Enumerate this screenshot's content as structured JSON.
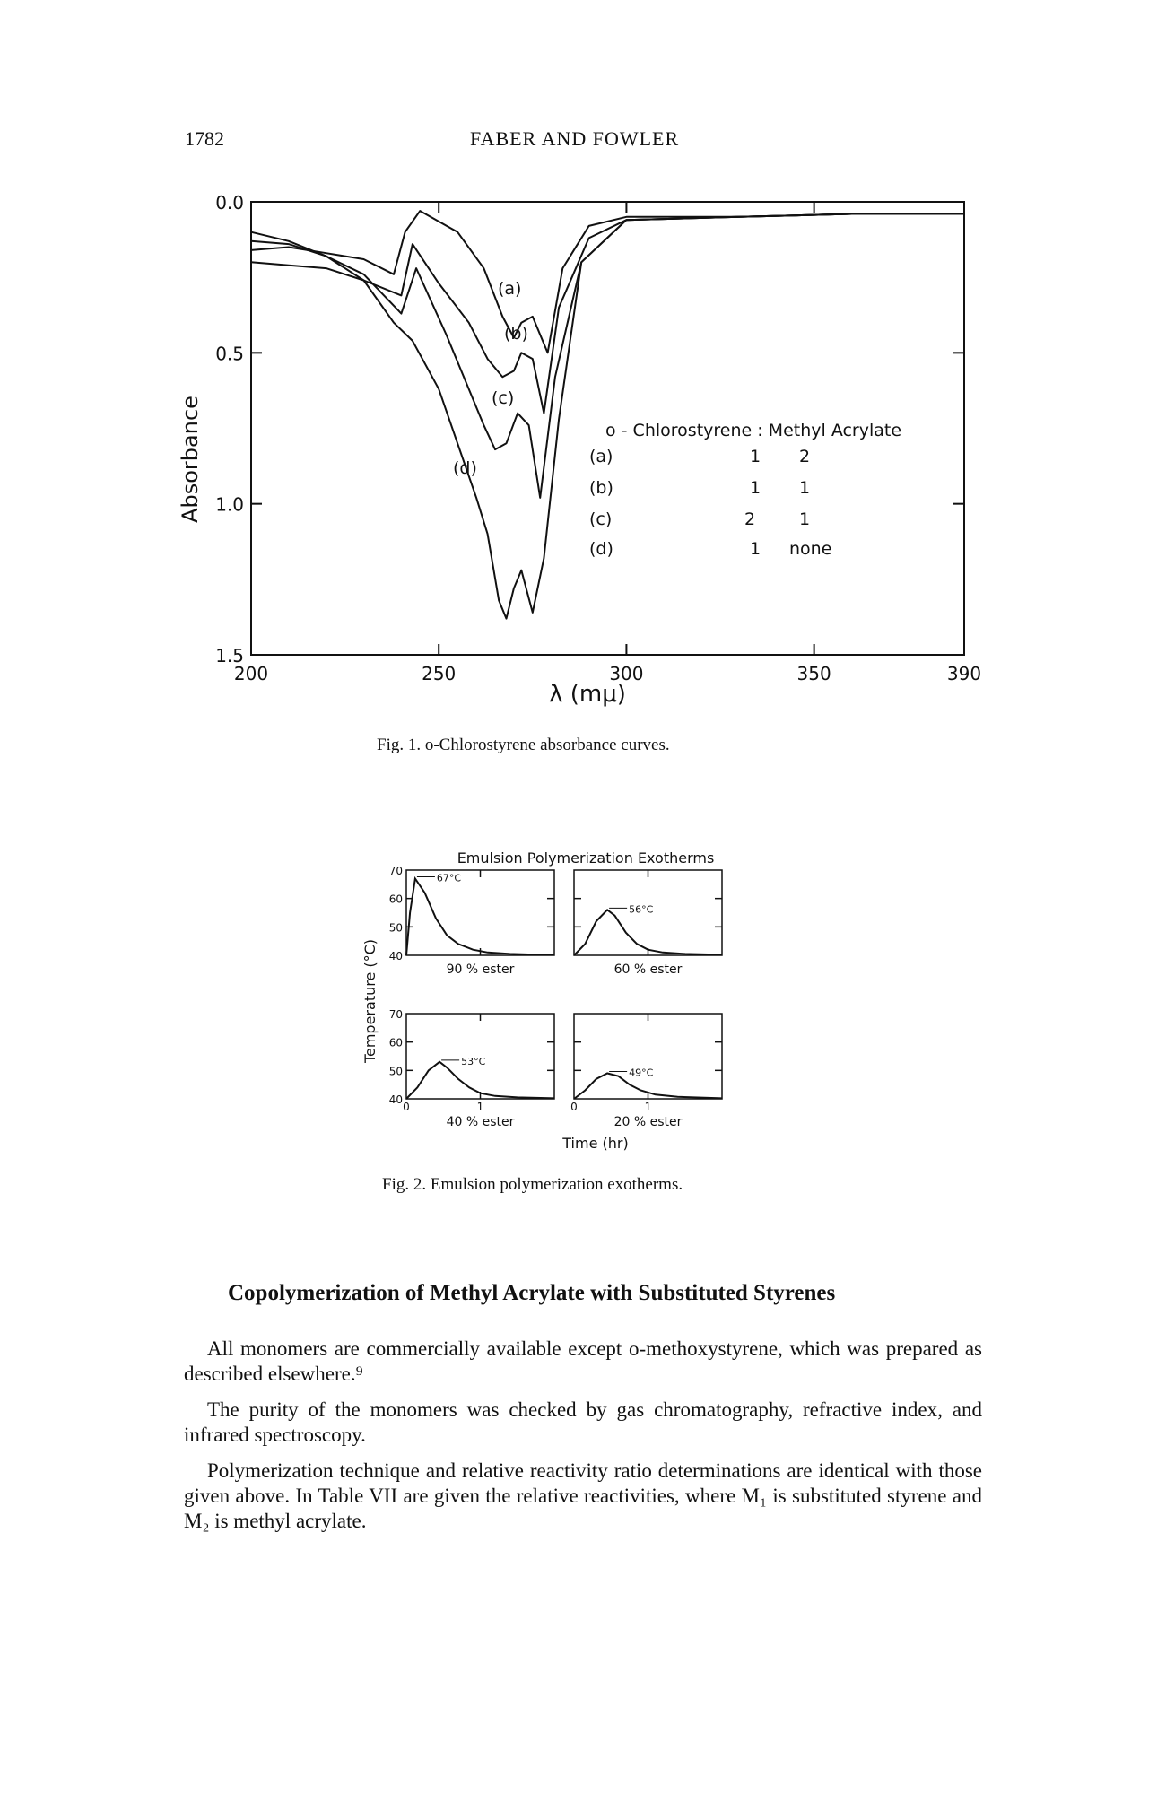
{
  "header": {
    "page_number": "1782",
    "running_head": "FABER AND FOWLER"
  },
  "figure1": {
    "caption": "Fig. 1. o-Chlorostyrene absorbance curves.",
    "legend_header": "o - Chlorostyrene : Methyl Acrylate",
    "legend_rows": [
      {
        "label": "(a)",
        "chloro": "1",
        "acrylate": "2"
      },
      {
        "label": "(b)",
        "chloro": "1",
        "acrylate": "1"
      },
      {
        "label": "(c)",
        "chloro": "2",
        "acrylate": "1"
      },
      {
        "label": "(d)",
        "chloro": "1",
        "acrylate": "none"
      }
    ],
    "chart_data": {
      "type": "line",
      "title": "",
      "xlabel": "λ (mμ)",
      "ylabel": "Absorbance",
      "xlim": [
        200,
        390
      ],
      "ylim": [
        0.0,
        1.5
      ],
      "y_inverted": true,
      "x_ticks": [
        "200",
        "250",
        "300",
        "350",
        "390"
      ],
      "y_ticks": [
        "0.0",
        "0.5",
        "1.0",
        "1.5"
      ],
      "series": [
        {
          "name": "(a)",
          "x": [
            200,
            210,
            220,
            230,
            238,
            241,
            245,
            255,
            262,
            267,
            270,
            272,
            275,
            279,
            283,
            290,
            300,
            330,
            360,
            390
          ],
          "y": [
            0.16,
            0.15,
            0.17,
            0.19,
            0.24,
            0.1,
            0.03,
            0.1,
            0.22,
            0.38,
            0.45,
            0.4,
            0.38,
            0.5,
            0.22,
            0.08,
            0.05,
            0.05,
            0.04,
            0.04
          ]
        },
        {
          "name": "(b)",
          "x": [
            200,
            210,
            220,
            230,
            240,
            243,
            250,
            258,
            263,
            267,
            270,
            272,
            275,
            278,
            282,
            290,
            300,
            330,
            360,
            390
          ],
          "y": [
            0.2,
            0.21,
            0.22,
            0.26,
            0.31,
            0.14,
            0.27,
            0.4,
            0.52,
            0.58,
            0.56,
            0.5,
            0.52,
            0.7,
            0.35,
            0.12,
            0.06,
            0.05,
            0.04,
            0.04
          ]
        },
        {
          "name": "(c)",
          "x": [
            200,
            210,
            220,
            230,
            240,
            244,
            252,
            258,
            262,
            265,
            268,
            271,
            274,
            277,
            281,
            288,
            300,
            330,
            360,
            390
          ],
          "y": [
            0.13,
            0.14,
            0.18,
            0.24,
            0.37,
            0.22,
            0.44,
            0.62,
            0.74,
            0.82,
            0.8,
            0.7,
            0.74,
            0.98,
            0.58,
            0.2,
            0.06,
            0.05,
            0.04,
            0.04
          ]
        },
        {
          "name": "(d)",
          "x": [
            200,
            210,
            220,
            230,
            238,
            243,
            250,
            255,
            260,
            263,
            266,
            268,
            270,
            272,
            275,
            278,
            282,
            288,
            300,
            330,
            360,
            390
          ],
          "y": [
            0.1,
            0.13,
            0.18,
            0.26,
            0.4,
            0.46,
            0.62,
            0.8,
            0.98,
            1.1,
            1.32,
            1.38,
            1.28,
            1.22,
            1.36,
            1.18,
            0.72,
            0.2,
            0.06,
            0.05,
            0.04,
            0.04
          ]
        }
      ]
    }
  },
  "figure2": {
    "caption": "Fig. 2. Emulsion polymerization exotherms.",
    "chart_data": {
      "type": "line",
      "title": "Emulsion Polymerization Exotherms",
      "ylabel": "Temperature (°C)",
      "xlabel": "Time (hr)",
      "ylim": [
        40,
        70
      ],
      "xlim": [
        0,
        2
      ],
      "x_ticks": [
        "0",
        "1"
      ],
      "y_ticks": [
        "40",
        "50",
        "60",
        "70"
      ],
      "panels": [
        {
          "subtitle": "90 % ester",
          "peak_label": "67°C",
          "peak_temp": 67,
          "x": [
            0,
            0.05,
            0.12,
            0.25,
            0.4,
            0.55,
            0.7,
            0.9,
            1.1,
            1.4,
            1.7,
            2.0
          ],
          "y": [
            40,
            55,
            67,
            62,
            53,
            47,
            44,
            42,
            41,
            40.5,
            40.3,
            40.2
          ]
        },
        {
          "subtitle": "60 % ester",
          "peak_label": "56°C",
          "peak_temp": 56,
          "x": [
            0,
            0.15,
            0.3,
            0.45,
            0.55,
            0.7,
            0.85,
            1.0,
            1.2,
            1.5,
            2.0
          ],
          "y": [
            40,
            44,
            52,
            56,
            54,
            48,
            44,
            42,
            41,
            40.5,
            40.2
          ]
        },
        {
          "subtitle": "40 % ester",
          "peak_label": "53°C",
          "peak_temp": 53,
          "x": [
            0,
            0.15,
            0.3,
            0.45,
            0.55,
            0.7,
            0.85,
            1.0,
            1.2,
            1.5,
            2.0
          ],
          "y": [
            40,
            44,
            50,
            53,
            51,
            47,
            44,
            42,
            41,
            40.5,
            40.2
          ]
        },
        {
          "subtitle": "20 % ester",
          "peak_label": "49°C",
          "peak_temp": 49,
          "x": [
            0,
            0.15,
            0.3,
            0.45,
            0.6,
            0.75,
            0.9,
            1.1,
            1.4,
            2.0
          ],
          "y": [
            40,
            43,
            47,
            49,
            48,
            45,
            43,
            41.5,
            40.7,
            40.2
          ]
        }
      ]
    }
  },
  "section": {
    "title": "Copolymerization of Methyl Acrylate with Substituted Styrenes",
    "paragraphs": [
      "All monomers are commercially available except o-methoxystyrene, which was prepared as described elsewhere.⁹",
      "The purity of the monomers was checked by gas chromatography, refractive index, and infrared spectroscopy.",
      "Polymerization technique and relative reactivity ratio determinations are identical with those given above. In Table VII are given the relative reactivities, where M₁ is substituted styrene and M₂ is methyl acrylate."
    ]
  }
}
